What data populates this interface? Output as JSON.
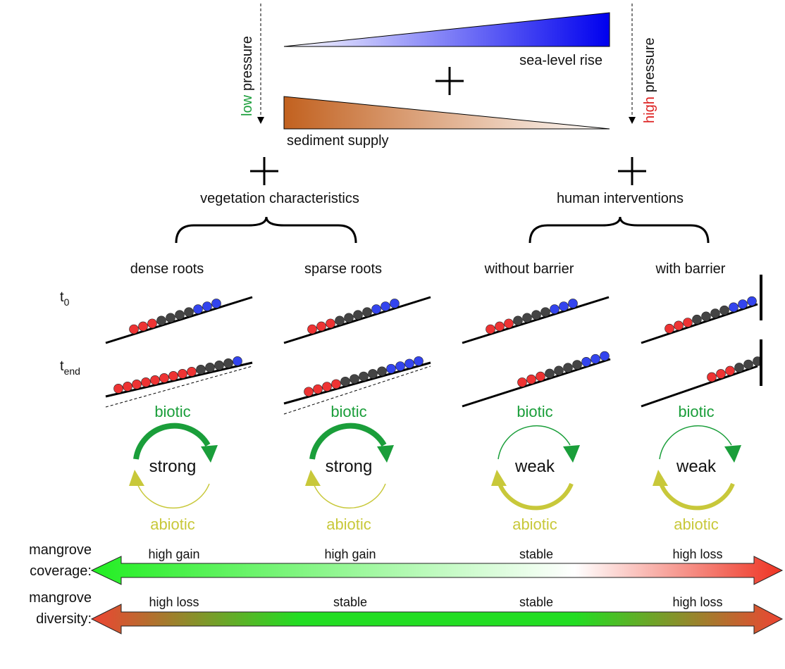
{
  "pressure": {
    "low": "low",
    "high": "high",
    "word": "pressure"
  },
  "drivers": {
    "sea_level": "sea-level rise",
    "sediment": "sediment supply"
  },
  "factors": [
    "vegetation characteristics",
    "human interventions"
  ],
  "time_labels": [
    {
      "base": "t",
      "sub": "0"
    },
    {
      "base": "t",
      "sub": "end"
    }
  ],
  "scenarios": [
    {
      "title": "dense roots",
      "biotic": "biotic",
      "strength": "strong",
      "abiotic": "abiotic"
    },
    {
      "title": "sparse roots",
      "biotic": "biotic",
      "strength": "strong",
      "abiotic": "abiotic"
    },
    {
      "title": "without barrier",
      "biotic": "biotic",
      "strength": "weak",
      "abiotic": "abiotic"
    },
    {
      "title": "with barrier",
      "biotic": "biotic",
      "strength": "weak",
      "abiotic": "abiotic"
    }
  ],
  "outcomes": [
    {
      "label_lines": [
        "mangrove",
        "coverage:"
      ],
      "values": [
        "high gain",
        "high gain",
        "stable",
        "high loss"
      ]
    },
    {
      "label_lines": [
        "mangrove",
        "diversity:"
      ],
      "values": [
        "high loss",
        "stable",
        "stable",
        "high loss"
      ]
    }
  ]
}
